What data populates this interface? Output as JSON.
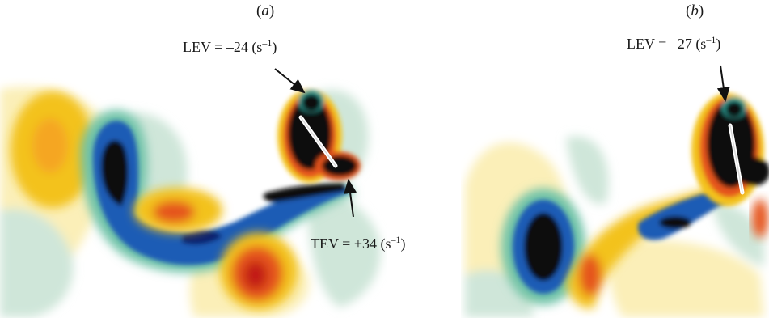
{
  "panels": [
    {
      "label": "a",
      "lev": {
        "prefix": "LEV = –24 (s",
        "exp": "–1",
        "suffix": ")"
      },
      "tev": {
        "prefix": "TEV = +34 (s",
        "exp": "–1",
        "suffix": ")"
      }
    },
    {
      "label": "b",
      "lev": {
        "prefix": "LEV = –27 (s",
        "exp": "–1",
        "suffix": ")"
      }
    }
  ],
  "colors": {
    "background": "#ffffff",
    "strong_negative": "#0a0a0a",
    "negative": "#1a3a9a",
    "mid_negative": "#2fa39a",
    "weak_negative": "#cfe6d9",
    "weak_positive": "#fbefb8",
    "mid_positive": "#f3c21d",
    "positive": "#e5541a",
    "strong_positive": "#c21e12"
  }
}
